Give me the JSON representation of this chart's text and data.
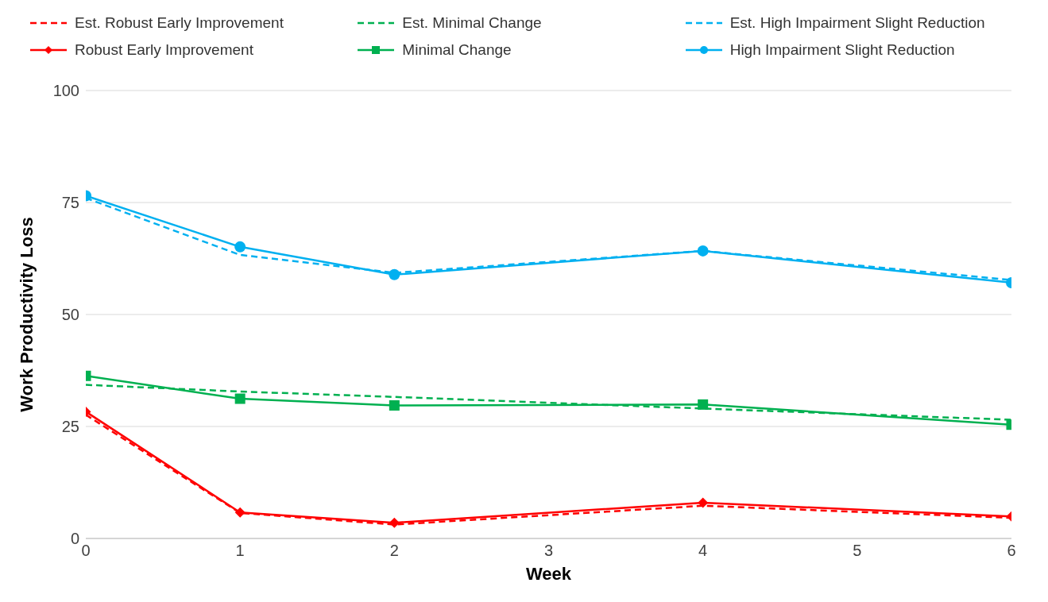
{
  "chart_data": {
    "type": "line",
    "xlabel": "Week",
    "ylabel": "Work Productivity Loss",
    "x": [
      0,
      1,
      2,
      4,
      6
    ],
    "xlim": [
      0,
      6
    ],
    "xticks": [
      0,
      1,
      2,
      3,
      4,
      5,
      6
    ],
    "ylim": [
      0,
      100
    ],
    "yticks": [
      0,
      25,
      50,
      75,
      100
    ],
    "grid": "y",
    "legend": "top",
    "series": [
      {
        "name": "Est. Robust Early Improvement",
        "color": "#ff0000",
        "line_style": "dashed",
        "marker": "none",
        "values": [
          27.6,
          5.7,
          3.1,
          7.3,
          4.6
        ]
      },
      {
        "name": "Est. Minimal Change",
        "color": "#00b050",
        "line_style": "dashed",
        "marker": "none",
        "values": [
          34.3,
          32.8,
          31.6,
          29.0,
          26.5
        ]
      },
      {
        "name": "Est. High Impairment Slight Reduction",
        "color": "#00b0f0",
        "line_style": "dashed",
        "marker": "none",
        "values": [
          76,
          63.3,
          59.3,
          64.2,
          57.7
        ]
      },
      {
        "name": "Robust Early Improvement",
        "color": "#ff0000",
        "line_style": "solid",
        "marker": "diamond",
        "values": [
          28.3,
          5.8,
          3.5,
          8.0,
          4.9
        ]
      },
      {
        "name": "Minimal Change",
        "color": "#00b050",
        "line_style": "solid",
        "marker": "square",
        "values": [
          36.3,
          31.2,
          29.7,
          29.9,
          25.4
        ]
      },
      {
        "name": "High Impairment Slight Reduction",
        "color": "#00b0f0",
        "line_style": "solid",
        "marker": "circle",
        "values": [
          76.5,
          65.1,
          58.9,
          64.2,
          57.1
        ]
      }
    ]
  }
}
